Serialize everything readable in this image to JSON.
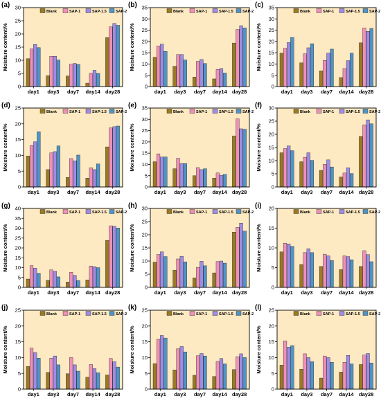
{
  "chart_data": [
    {
      "panel": "(a)",
      "type": "bar",
      "categories": [
        "day1",
        "day3",
        "day7",
        "day14",
        "day28"
      ],
      "ylabel": "Moisture content/%",
      "ylim": [
        0,
        30
      ],
      "yticks": [
        0,
        5,
        10,
        15,
        20,
        25,
        30
      ],
      "series": [
        {
          "name": "Blank",
          "values": [
            10.6,
            4.1,
            4.0,
            1.3,
            18.6
          ]
        },
        {
          "name": "SAP-1",
          "values": [
            14.3,
            11.5,
            8.5,
            5.0,
            22.7
          ]
        },
        {
          "name": "SAP-1.5",
          "values": [
            16.0,
            11.5,
            8.8,
            6.2,
            24.0
          ]
        },
        {
          "name": "SAP-2",
          "values": [
            14.8,
            10.1,
            8.4,
            5.0,
            23.3
          ]
        }
      ]
    },
    {
      "panel": "(b)",
      "type": "bar",
      "categories": [
        "day1",
        "day3",
        "day7",
        "day14",
        "day28"
      ],
      "ylabel": "Moisture content/%",
      "ylim": [
        0,
        35
      ],
      "yticks": [
        0,
        5,
        10,
        15,
        20,
        25,
        30,
        35
      ],
      "series": [
        {
          "name": "Blank",
          "values": [
            13.0,
            9.0,
            4.2,
            3.4,
            19.3
          ]
        },
        {
          "name": "SAP-1",
          "values": [
            18.0,
            14.2,
            11.2,
            7.6,
            25.3
          ]
        },
        {
          "name": "SAP-1.5",
          "values": [
            18.8,
            14.2,
            12.0,
            8.0,
            27.0
          ]
        },
        {
          "name": "SAP-2",
          "values": [
            15.6,
            11.8,
            10.2,
            6.0,
            26.0
          ]
        }
      ]
    },
    {
      "panel": "(c)",
      "type": "bar",
      "categories": [
        "day1",
        "day3",
        "day7",
        "day14",
        "day28"
      ],
      "ylabel": "Moisture content/%",
      "ylim": [
        0,
        35
      ],
      "yticks": [
        0,
        5,
        10,
        15,
        20,
        25,
        30,
        35
      ],
      "series": [
        {
          "name": "Blank",
          "values": [
            14.8,
            10.5,
            7.0,
            4.0,
            19.4
          ]
        },
        {
          "name": "SAP-1",
          "values": [
            17.0,
            14.5,
            11.6,
            8.0,
            26.0
          ]
        },
        {
          "name": "SAP-1.5",
          "values": [
            19.5,
            17.2,
            14.8,
            11.5,
            24.5
          ]
        },
        {
          "name": "SAP-2",
          "values": [
            21.8,
            19.0,
            16.6,
            14.8,
            25.8
          ]
        }
      ]
    },
    {
      "panel": "(d)",
      "type": "bar",
      "categories": [
        "day1",
        "day3",
        "day7",
        "day14",
        "day28"
      ],
      "ylabel": "Moisture content/%",
      "ylim": [
        0,
        25
      ],
      "yticks": [
        0,
        5,
        10,
        15,
        20,
        25
      ],
      "series": [
        {
          "name": "Blank",
          "values": [
            9.8,
            5.5,
            3.0,
            2.8,
            12.7
          ]
        },
        {
          "name": "SAP-1",
          "values": [
            13.1,
            10.8,
            9.0,
            6.1,
            18.7
          ]
        },
        {
          "name": "SAP-1.5",
          "values": [
            14.3,
            11.2,
            8.3,
            5.5,
            19.1
          ]
        },
        {
          "name": "SAP-2",
          "values": [
            17.5,
            13.0,
            10.1,
            7.3,
            19.3
          ]
        }
      ]
    },
    {
      "panel": "(e)",
      "type": "bar",
      "categories": [
        "day1",
        "day3",
        "day7",
        "day14",
        "day28"
      ],
      "ylabel": "Moisture content/%",
      "ylim": [
        0,
        35
      ],
      "yticks": [
        0,
        5,
        10,
        15,
        20,
        25,
        30,
        35
      ],
      "series": [
        {
          "name": "Blank",
          "values": [
            11.2,
            8.1,
            5.0,
            3.9,
            22.6
          ]
        },
        {
          "name": "SAP-1",
          "values": [
            14.7,
            12.7,
            8.6,
            6.2,
            30.2
          ]
        },
        {
          "name": "SAP-1.5",
          "values": [
            13.3,
            10.4,
            7.7,
            5.2,
            25.8
          ]
        },
        {
          "name": "SAP-2",
          "values": [
            13.3,
            10.4,
            8.1,
            5.6,
            25.6
          ]
        }
      ]
    },
    {
      "panel": "(f)",
      "type": "bar",
      "categories": [
        "day1",
        "day3",
        "day7",
        "day14",
        "day28"
      ],
      "ylabel": "Moisture content/%",
      "ylim": [
        0,
        30
      ],
      "yticks": [
        0,
        5,
        10,
        15,
        20,
        25,
        30
      ],
      "series": [
        {
          "name": "Blank",
          "values": [
            13.0,
            9.6,
            6.3,
            3.8,
            19.2
          ]
        },
        {
          "name": "SAP-1",
          "values": [
            14.6,
            11.3,
            8.6,
            5.3,
            23.6
          ]
        },
        {
          "name": "SAP-1.5",
          "values": [
            15.6,
            13.0,
            10.3,
            7.3,
            25.5
          ]
        },
        {
          "name": "SAP-2",
          "values": [
            13.8,
            10.1,
            7.6,
            5.1,
            24.0
          ]
        }
      ]
    },
    {
      "panel": "(g)",
      "type": "bar",
      "categories": [
        "day1",
        "day3",
        "day7",
        "day14",
        "day28"
      ],
      "ylabel": "Moisture content/%",
      "ylim": [
        0,
        40
      ],
      "yticks": [
        0,
        5,
        10,
        15,
        20,
        25,
        30,
        35,
        40
      ],
      "series": [
        {
          "name": "Blank",
          "values": [
            4.2,
            3.6,
            2.7,
            3.8,
            23.8
          ]
        },
        {
          "name": "SAP-1",
          "values": [
            11.0,
            8.9,
            7.6,
            10.8,
            31.2
          ]
        },
        {
          "name": "SAP-1.5",
          "values": [
            9.7,
            8.2,
            6.1,
            10.5,
            31.0
          ]
        },
        {
          "name": "SAP-2",
          "values": [
            7.1,
            5.3,
            3.5,
            10.0,
            30.1
          ]
        }
      ]
    },
    {
      "panel": "(h)",
      "type": "bar",
      "categories": [
        "day1",
        "day3",
        "day7",
        "day14",
        "day28"
      ],
      "ylabel": "Moisture content/%",
      "ylim": [
        0,
        30
      ],
      "yticks": [
        0,
        5,
        10,
        15,
        20,
        25,
        30
      ],
      "series": [
        {
          "name": "Blank",
          "values": [
            9.6,
            6.5,
            3.6,
            5.5,
            21.0
          ]
        },
        {
          "name": "SAP-1",
          "values": [
            12.5,
            10.8,
            7.6,
            9.8,
            22.8
          ]
        },
        {
          "name": "SAP-1.5",
          "values": [
            13.5,
            11.8,
            9.9,
            10.0,
            24.4
          ]
        },
        {
          "name": "SAP-2",
          "values": [
            11.7,
            9.7,
            8.2,
            9.2,
            21.4
          ]
        }
      ]
    },
    {
      "panel": "(i)",
      "type": "bar",
      "categories": [
        "day1",
        "day3",
        "day7",
        "day14",
        "day28"
      ],
      "ylabel": "Moisture content/%",
      "ylim": [
        0,
        20
      ],
      "yticks": [
        0,
        5,
        10,
        15,
        20
      ],
      "series": [
        {
          "name": "Blank",
          "values": [
            9.0,
            5.8,
            5.3,
            4.5,
            5.3
          ]
        },
        {
          "name": "SAP-1",
          "values": [
            11.2,
            8.8,
            8.4,
            8.0,
            9.3
          ]
        },
        {
          "name": "SAP-1.5",
          "values": [
            11.0,
            9.8,
            8.0,
            7.8,
            8.3
          ]
        },
        {
          "name": "SAP-2",
          "values": [
            10.4,
            8.8,
            6.8,
            7.0,
            6.5
          ]
        }
      ]
    },
    {
      "panel": "(j)",
      "type": "bar",
      "categories": [
        "day1",
        "day3",
        "day7",
        "day14",
        "day28"
      ],
      "ylabel": "Moisture content/%",
      "ylim": [
        0,
        25
      ],
      "yticks": [
        0,
        5,
        10,
        15,
        20,
        25
      ],
      "series": [
        {
          "name": "Blank",
          "values": [
            7.2,
            5.3,
            4.9,
            3.8,
            4.5
          ]
        },
        {
          "name": "SAP-1",
          "values": [
            13.0,
            9.8,
            10.0,
            7.8,
            9.7
          ]
        },
        {
          "name": "SAP-1.5",
          "values": [
            11.6,
            10.5,
            7.7,
            6.5,
            8.7
          ]
        },
        {
          "name": "SAP-2",
          "values": [
            9.8,
            7.7,
            5.7,
            5.2,
            7.0
          ]
        }
      ]
    },
    {
      "panel": "(k)",
      "type": "bar",
      "categories": [
        "day1",
        "day3",
        "day7",
        "day14",
        "day28"
      ],
      "ylabel": "Moisture content/%",
      "ylim": [
        0,
        25
      ],
      "yticks": [
        0,
        5,
        10,
        15,
        20,
        25
      ],
      "series": [
        {
          "name": "Blank",
          "values": [
            8.1,
            6.1,
            4.4,
            4.0,
            6.2
          ]
        },
        {
          "name": "SAP-1",
          "values": [
            15.8,
            12.8,
            10.6,
            8.8,
            10.3
          ]
        },
        {
          "name": "SAP-1.5",
          "values": [
            17.0,
            13.5,
            11.3,
            9.7,
            11.2
          ]
        },
        {
          "name": "SAP-2",
          "values": [
            16.2,
            11.8,
            10.5,
            8.0,
            10.0
          ]
        }
      ]
    },
    {
      "panel": "(l)",
      "type": "bar",
      "categories": [
        "day1",
        "day3",
        "day7",
        "day14",
        "day28"
      ],
      "ylabel": "Moisture content/%",
      "ylim": [
        0,
        25
      ],
      "yticks": [
        0,
        5,
        10,
        15,
        20,
        25
      ],
      "series": [
        {
          "name": "Blank",
          "values": [
            7.6,
            6.3,
            3.5,
            5.4,
            7.8
          ]
        },
        {
          "name": "SAP-1",
          "values": [
            15.3,
            11.2,
            10.5,
            8.5,
            10.8
          ]
        },
        {
          "name": "SAP-1.5",
          "values": [
            13.3,
            10.0,
            10.0,
            10.7,
            11.3
          ]
        },
        {
          "name": "SAP-2",
          "values": [
            13.8,
            8.7,
            8.5,
            8.0,
            8.3
          ]
        }
      ]
    }
  ],
  "colors": {
    "Blank": "#9a7a22",
    "SAP-1": "#ef90b8",
    "SAP-1.5": "#9e8ce6",
    "SAP-2": "#4e94c8",
    "plot_background": "#fde9c2"
  }
}
